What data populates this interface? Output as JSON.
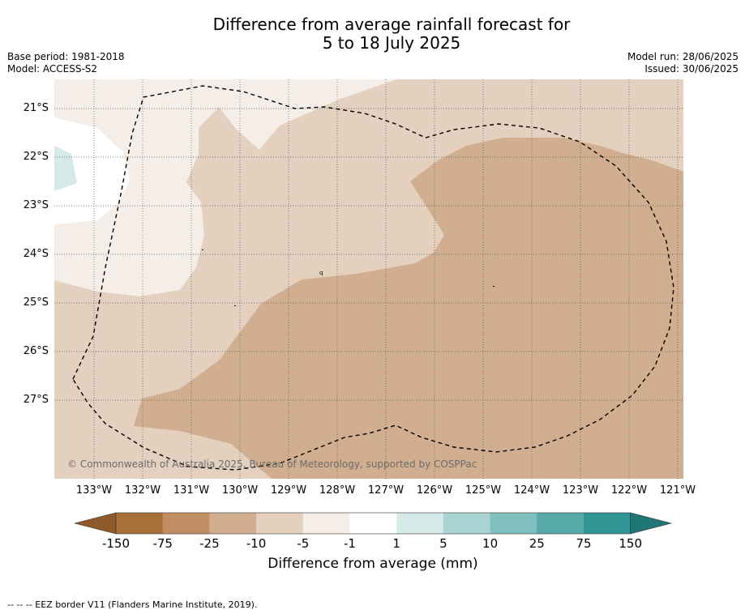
{
  "title_line1": "Difference from average rainfall forecast for",
  "title_line2": "5 to 18 July 2025",
  "base_period": "Base period: 1981-2018",
  "model": "Model: ACCESS-S2",
  "model_run": "Model run: 28/06/2025",
  "issued": "Issued: 30/06/2025",
  "copyright": "© Commonwealth of Australia 2025, Bureau of Meteorology, supported by COSPPac",
  "latitudes": [
    "21°S",
    "22°S",
    "23°S",
    "24°S",
    "25°S",
    "26°S",
    "27°S"
  ],
  "longitudes": [
    "133°W",
    "132°W",
    "131°W",
    "130°W",
    "129°W",
    "128°W",
    "127°W",
    "126°W",
    "125°W",
    "124°W",
    "123°W",
    "122°W",
    "121°W"
  ],
  "colorbar": {
    "title": "Difference from average (mm)",
    "ticks": [
      "-150",
      "-75",
      "-25",
      "-10",
      "-5",
      "-1",
      "1",
      "5",
      "10",
      "25",
      "75",
      "150"
    ],
    "colors": [
      "#a87138",
      "#c08e62",
      "#d1ae8f",
      "#e3d0bf",
      "#f5ede7",
      "#ffffff",
      "#d5e9e8",
      "#aad3d3",
      "#80bfbf",
      "#58aaaa",
      "#2f9594",
      "#1e7775"
    ],
    "low_extend_color": "#8e5a2a"
  },
  "footer": "--  --  -- EEZ border V11 (Flanders Marine Institute, 2019)."
}
